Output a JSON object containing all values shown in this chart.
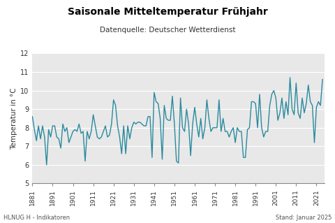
{
  "title": "Saisonale Mitteltemperatur Frühjahr",
  "subtitle": "Datenquelle: Deutscher Wetterdienst",
  "ylabel": "Temperatur in °C",
  "footer_left": "HLNUG H - Indikatoren",
  "footer_right": "Stand: Januar 2025",
  "xlim": [
    1881,
    2025
  ],
  "ylim": [
    5,
    12
  ],
  "yticks": [
    5,
    6,
    7,
    8,
    9,
    10,
    11,
    12
  ],
  "xticks": [
    1881,
    1891,
    1901,
    1911,
    1921,
    1931,
    1941,
    1951,
    1961,
    1971,
    1981,
    1991,
    2001,
    2011,
    2021
  ],
  "line_color": "#2a8a9e",
  "bg_color": "#e8e8e8",
  "title_color": "#000000",
  "subtitle_color": "#333333",
  "footer_color": "#555555",
  "years": [
    1881,
    1882,
    1883,
    1884,
    1885,
    1886,
    1887,
    1888,
    1889,
    1890,
    1891,
    1892,
    1893,
    1894,
    1895,
    1896,
    1897,
    1898,
    1899,
    1900,
    1901,
    1902,
    1903,
    1904,
    1905,
    1906,
    1907,
    1908,
    1909,
    1910,
    1911,
    1912,
    1913,
    1914,
    1915,
    1916,
    1917,
    1918,
    1919,
    1920,
    1921,
    1922,
    1923,
    1924,
    1925,
    1926,
    1927,
    1928,
    1929,
    1930,
    1931,
    1932,
    1933,
    1934,
    1935,
    1936,
    1937,
    1938,
    1939,
    1940,
    1941,
    1942,
    1943,
    1944,
    1945,
    1946,
    1947,
    1948,
    1949,
    1950,
    1951,
    1952,
    1953,
    1954,
    1955,
    1956,
    1957,
    1958,
    1959,
    1960,
    1961,
    1962,
    1963,
    1964,
    1965,
    1966,
    1967,
    1968,
    1969,
    1970,
    1971,
    1972,
    1973,
    1974,
    1975,
    1976,
    1977,
    1978,
    1979,
    1980,
    1981,
    1982,
    1983,
    1984,
    1985,
    1986,
    1987,
    1988,
    1989,
    1990,
    1991,
    1992,
    1993,
    1994,
    1995,
    1996,
    1997,
    1998,
    1999,
    2000,
    2001,
    2002,
    2003,
    2004,
    2005,
    2006,
    2007,
    2008,
    2009,
    2010,
    2011,
    2012,
    2013,
    2014,
    2015,
    2016,
    2017,
    2018,
    2019,
    2020,
    2021,
    2022,
    2023,
    2024
  ],
  "temps": [
    8.6,
    7.9,
    7.3,
    8.1,
    7.4,
    8.1,
    7.5,
    6.0,
    7.9,
    7.5,
    8.1,
    8.1,
    7.5,
    7.4,
    6.9,
    8.2,
    7.8,
    8.0,
    7.2,
    7.5,
    7.8,
    7.9,
    7.8,
    8.2,
    7.7,
    7.8,
    6.2,
    7.8,
    7.4,
    7.8,
    8.7,
    8.1,
    7.5,
    7.4,
    7.5,
    7.8,
    8.1,
    7.5,
    7.6,
    8.2,
    9.5,
    9.2,
    8.1,
    7.5,
    6.6,
    8.1,
    6.6,
    8.1,
    7.4,
    8.0,
    8.3,
    8.2,
    8.3,
    8.3,
    8.2,
    8.1,
    8.1,
    8.6,
    8.6,
    6.4,
    9.9,
    9.4,
    9.3,
    8.5,
    6.3,
    9.2,
    8.5,
    8.4,
    8.4,
    9.7,
    8.2,
    6.2,
    6.1,
    9.6,
    8.0,
    7.8,
    9.0,
    8.2,
    6.5,
    8.2,
    9.1,
    8.2,
    7.5,
    8.5,
    7.4,
    8.0,
    9.5,
    8.5,
    7.8,
    8.0,
    8.0,
    8.0,
    9.5,
    7.8,
    8.5,
    7.8,
    7.8,
    7.5,
    7.8,
    8.0,
    7.2,
    8.0,
    7.8,
    7.8,
    6.4,
    6.4,
    7.9,
    8.0,
    9.4,
    9.4,
    9.3,
    8.0,
    9.8,
    8.0,
    7.5,
    7.8,
    7.8,
    9.2,
    9.8,
    10.0,
    9.6,
    8.4,
    8.8,
    9.6,
    8.5,
    9.4,
    8.7,
    10.7,
    9.0,
    8.7,
    10.4,
    8.8,
    8.5,
    9.6,
    8.8,
    9.3,
    10.3,
    9.4,
    9.2,
    7.2,
    9.1,
    9.4,
    9.2,
    10.6
  ]
}
